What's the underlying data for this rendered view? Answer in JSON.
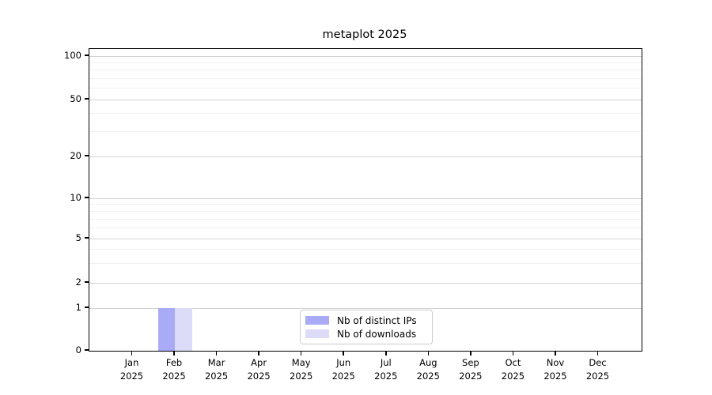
{
  "chart_data": {
    "type": "bar",
    "title": "metaplot 2025",
    "categories": [
      "Jan",
      "Feb",
      "Mar",
      "Apr",
      "May",
      "Jun",
      "Jul",
      "Aug",
      "Sep",
      "Oct",
      "Nov",
      "Dec"
    ],
    "x_tick_year": "2025",
    "series": [
      {
        "name": "Nb of distinct IPs",
        "color": "#a9abf6",
        "values": [
          0,
          1,
          0,
          0,
          0,
          0,
          0,
          0,
          0,
          0,
          0,
          0
        ]
      },
      {
        "name": "Nb of downloads",
        "color": "#dcdcf8",
        "values": [
          0,
          1,
          0,
          0,
          0,
          0,
          0,
          0,
          0,
          0,
          0,
          0
        ]
      }
    ],
    "xlabel": "",
    "ylabel": "",
    "yscale": "symlog",
    "yticks": [
      0,
      1,
      2,
      5,
      10,
      20,
      50,
      100
    ],
    "minor_yticks": [
      3,
      4,
      6,
      7,
      8,
      9,
      30,
      40,
      60,
      70,
      80,
      90
    ],
    "ylim": [
      0,
      110
    ],
    "grid": "horizontal",
    "legend": {
      "position": "lower center",
      "entries": [
        "Nb of distinct IPs",
        "Nb of downloads"
      ]
    },
    "colors": {
      "major_grid": "#d2d2d2",
      "minor_grid": "#f0f0f0",
      "axis": "#000000",
      "legend_border": "#cccccc",
      "background": "#ffffff"
    }
  }
}
